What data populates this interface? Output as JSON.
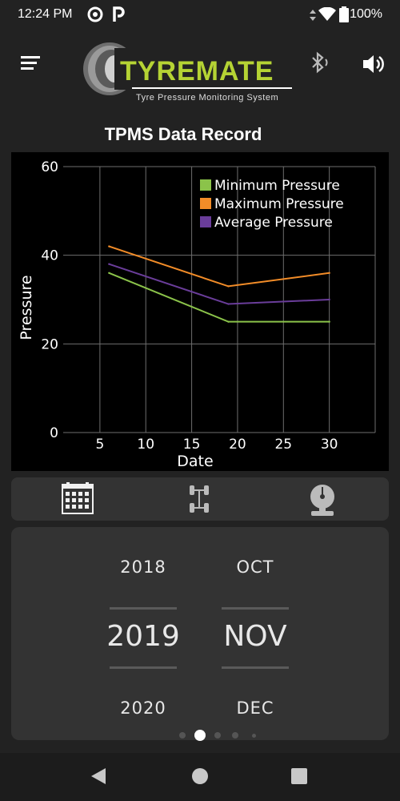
{
  "status": {
    "time": "12:24 PM",
    "battery": "100%"
  },
  "header": {
    "logo_wordmark": "TYREMATE",
    "logo_tagline": "Tyre Pressure Monitoring System"
  },
  "page": {
    "title": "TPMS Data Record"
  },
  "chart_data": {
    "type": "line",
    "title": "",
    "xlabel": "Date",
    "ylabel": "Pressure",
    "xlim": [
      1,
      35
    ],
    "ylim": [
      0,
      60
    ],
    "xticks": [
      5,
      10,
      15,
      20,
      25,
      30
    ],
    "yticks": [
      0,
      20,
      40,
      60
    ],
    "grid": true,
    "legend_position": "top-right",
    "x": [
      6,
      19,
      30
    ],
    "series": [
      {
        "name": "Minimum Pressure",
        "color": "#8bc34a",
        "values": [
          36,
          25,
          25
        ]
      },
      {
        "name": "Maximum Pressure",
        "color": "#f28c28",
        "values": [
          42,
          33,
          36
        ]
      },
      {
        "name": "Average Pressure",
        "color": "#6a3d9a",
        "values": [
          38,
          29,
          30
        ]
      }
    ]
  },
  "tabs": [
    {
      "icon": "calendar-icon"
    },
    {
      "icon": "axle-icon"
    },
    {
      "icon": "gauge-icon"
    }
  ],
  "picker": {
    "years": [
      "2018",
      "2019",
      "2020"
    ],
    "months": [
      "OCT",
      "NOV",
      "DEC"
    ],
    "selected_year": "2019",
    "selected_month": "NOV"
  },
  "pager": {
    "pages": 5,
    "current": 1
  },
  "colors": {
    "accent": "#b5d334",
    "background": "#222222",
    "chart_bg": "#000000"
  }
}
